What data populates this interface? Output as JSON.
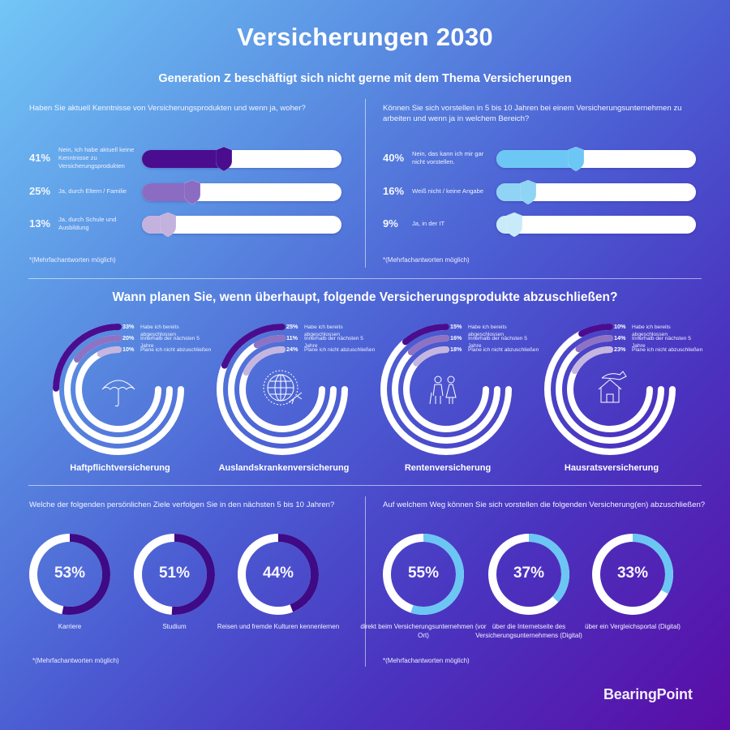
{
  "header": {
    "title": "Versicherungen 2030",
    "subtitle": "Generation Z beschäftigt sich nicht gerne mit dem Thema Versicherungen"
  },
  "products_section": {
    "title": "Wann planen Sie, wenn überhaupt, folgende Versicherungsprodukte abzuschließen?",
    "icons": [
      "umbrella-icon",
      "globe-airplane-icon",
      "elderly-couple-icon",
      "house-hand-icon"
    ]
  },
  "logo": "BearingPoint",
  "colors": {
    "bars_left": [
      "#4a0d8f",
      "#8c6bc2",
      "#c3b1de"
    ],
    "bars_right": [
      "#6dc7f4",
      "#8fd4f4",
      "#c9ebf9"
    ],
    "rings": [
      "#4a0d8f",
      "#8e72c4",
      "#c5b6e0"
    ],
    "donut_goals": "#3e0a86",
    "donut_channels": "#6cc6f4",
    "track": "#ffffff"
  },
  "chart_data": [
    {
      "type": "bar",
      "orientation": "horizontal",
      "title": "Haben Sie aktuell Kenntnisse von Versicherungsprodukten und wenn ja, woher?",
      "categories": [
        "Nein, Ich habe aktuell keine Kenntnisse zu Versicherungsprodukten",
        "Ja, durch Eltern / Familie",
        "Ja, durch Schule und Ausbildung"
      ],
      "values": [
        41,
        25,
        13
      ],
      "value_labels": [
        "41%",
        "25%",
        "13%"
      ],
      "xlim": [
        0,
        100
      ],
      "note": "*(Mehrfachantworten möglich)"
    },
    {
      "type": "bar",
      "orientation": "horizontal",
      "title": "Können Sie sich vorstellen in 5 bis 10 Jahren bei einem Versicherungsunternehmen zu arbeiten und wenn ja in welchem Bereich?",
      "categories": [
        "Nein, das kann ich mir gar nicht vorstellen.",
        "Weiß nicht / keine Angabe",
        "Ja, in der IT"
      ],
      "values": [
        40,
        16,
        9
      ],
      "value_labels": [
        "40%",
        "16%",
        "9%"
      ],
      "xlim": [
        0,
        100
      ],
      "note": "*(Mehrfachantworten möglich)"
    },
    {
      "type": "radial-bar",
      "title": "Haftpflichtversicherung",
      "categories": [
        "Habe ich bereits abgeschlossen",
        "Innerhalb der nächsten 5 Jahre",
        "Plane ich nicht abzuschließen"
      ],
      "values": [
        33,
        20,
        10
      ],
      "value_labels": [
        "33%",
        "20%",
        "10%"
      ]
    },
    {
      "type": "radial-bar",
      "title": "Auslandskrankenversicherung",
      "categories": [
        "Habe ich bereits abgeschlossen",
        "Innerhalb der nächsten 5 Jahre",
        "Plane ich nicht abzuschließen"
      ],
      "values": [
        25,
        11,
        24
      ],
      "value_labels": [
        "25%",
        "11%",
        "24%"
      ]
    },
    {
      "type": "radial-bar",
      "title": "Rentenversicherung",
      "categories": [
        "Habe ich bereits abgeschlossen",
        "Innerhalb der nächsten 5 Jahre",
        "Plane ich nicht abzuschließen"
      ],
      "values": [
        15,
        16,
        18
      ],
      "value_labels": [
        "15%",
        "16%",
        "18%"
      ]
    },
    {
      "type": "radial-bar",
      "title": "Hausratsversicherung",
      "categories": [
        "Habe ich bereits abgeschlossen",
        "Innerhalb der nächsten 5 Jahre",
        "Plane ich nicht abzuschließen"
      ],
      "values": [
        10,
        14,
        23
      ],
      "value_labels": [
        "10%",
        "14%",
        "23%"
      ]
    },
    {
      "type": "pie",
      "style": "donut",
      "title": "Welche der folgenden persönlichen Ziele verfolgen Sie in den nächsten 5 bis 10 Jahren?",
      "categories": [
        "Karriere",
        "Studium",
        "Reisen und fremde Kulturen kennenlernen"
      ],
      "values": [
        53,
        51,
        44
      ],
      "value_labels": [
        "53%",
        "51%",
        "44%"
      ],
      "note": "*(Mehrfachantworten möglich)"
    },
    {
      "type": "pie",
      "style": "donut",
      "title": "Auf welchem Weg können Sie sich vorstellen die folgenden Versicherung(en) abzuschließen?",
      "categories": [
        "direkt beim Versicherungsunternehmen (vor Ort)",
        "über die Internetseite des Versicherungsunternehmens (Digital)",
        "über ein Vergleichsportal (Digital)"
      ],
      "values": [
        55,
        37,
        33
      ],
      "value_labels": [
        "55%",
        "37%",
        "33%"
      ],
      "note": "*(Mehrfachantworten möglich)"
    }
  ]
}
